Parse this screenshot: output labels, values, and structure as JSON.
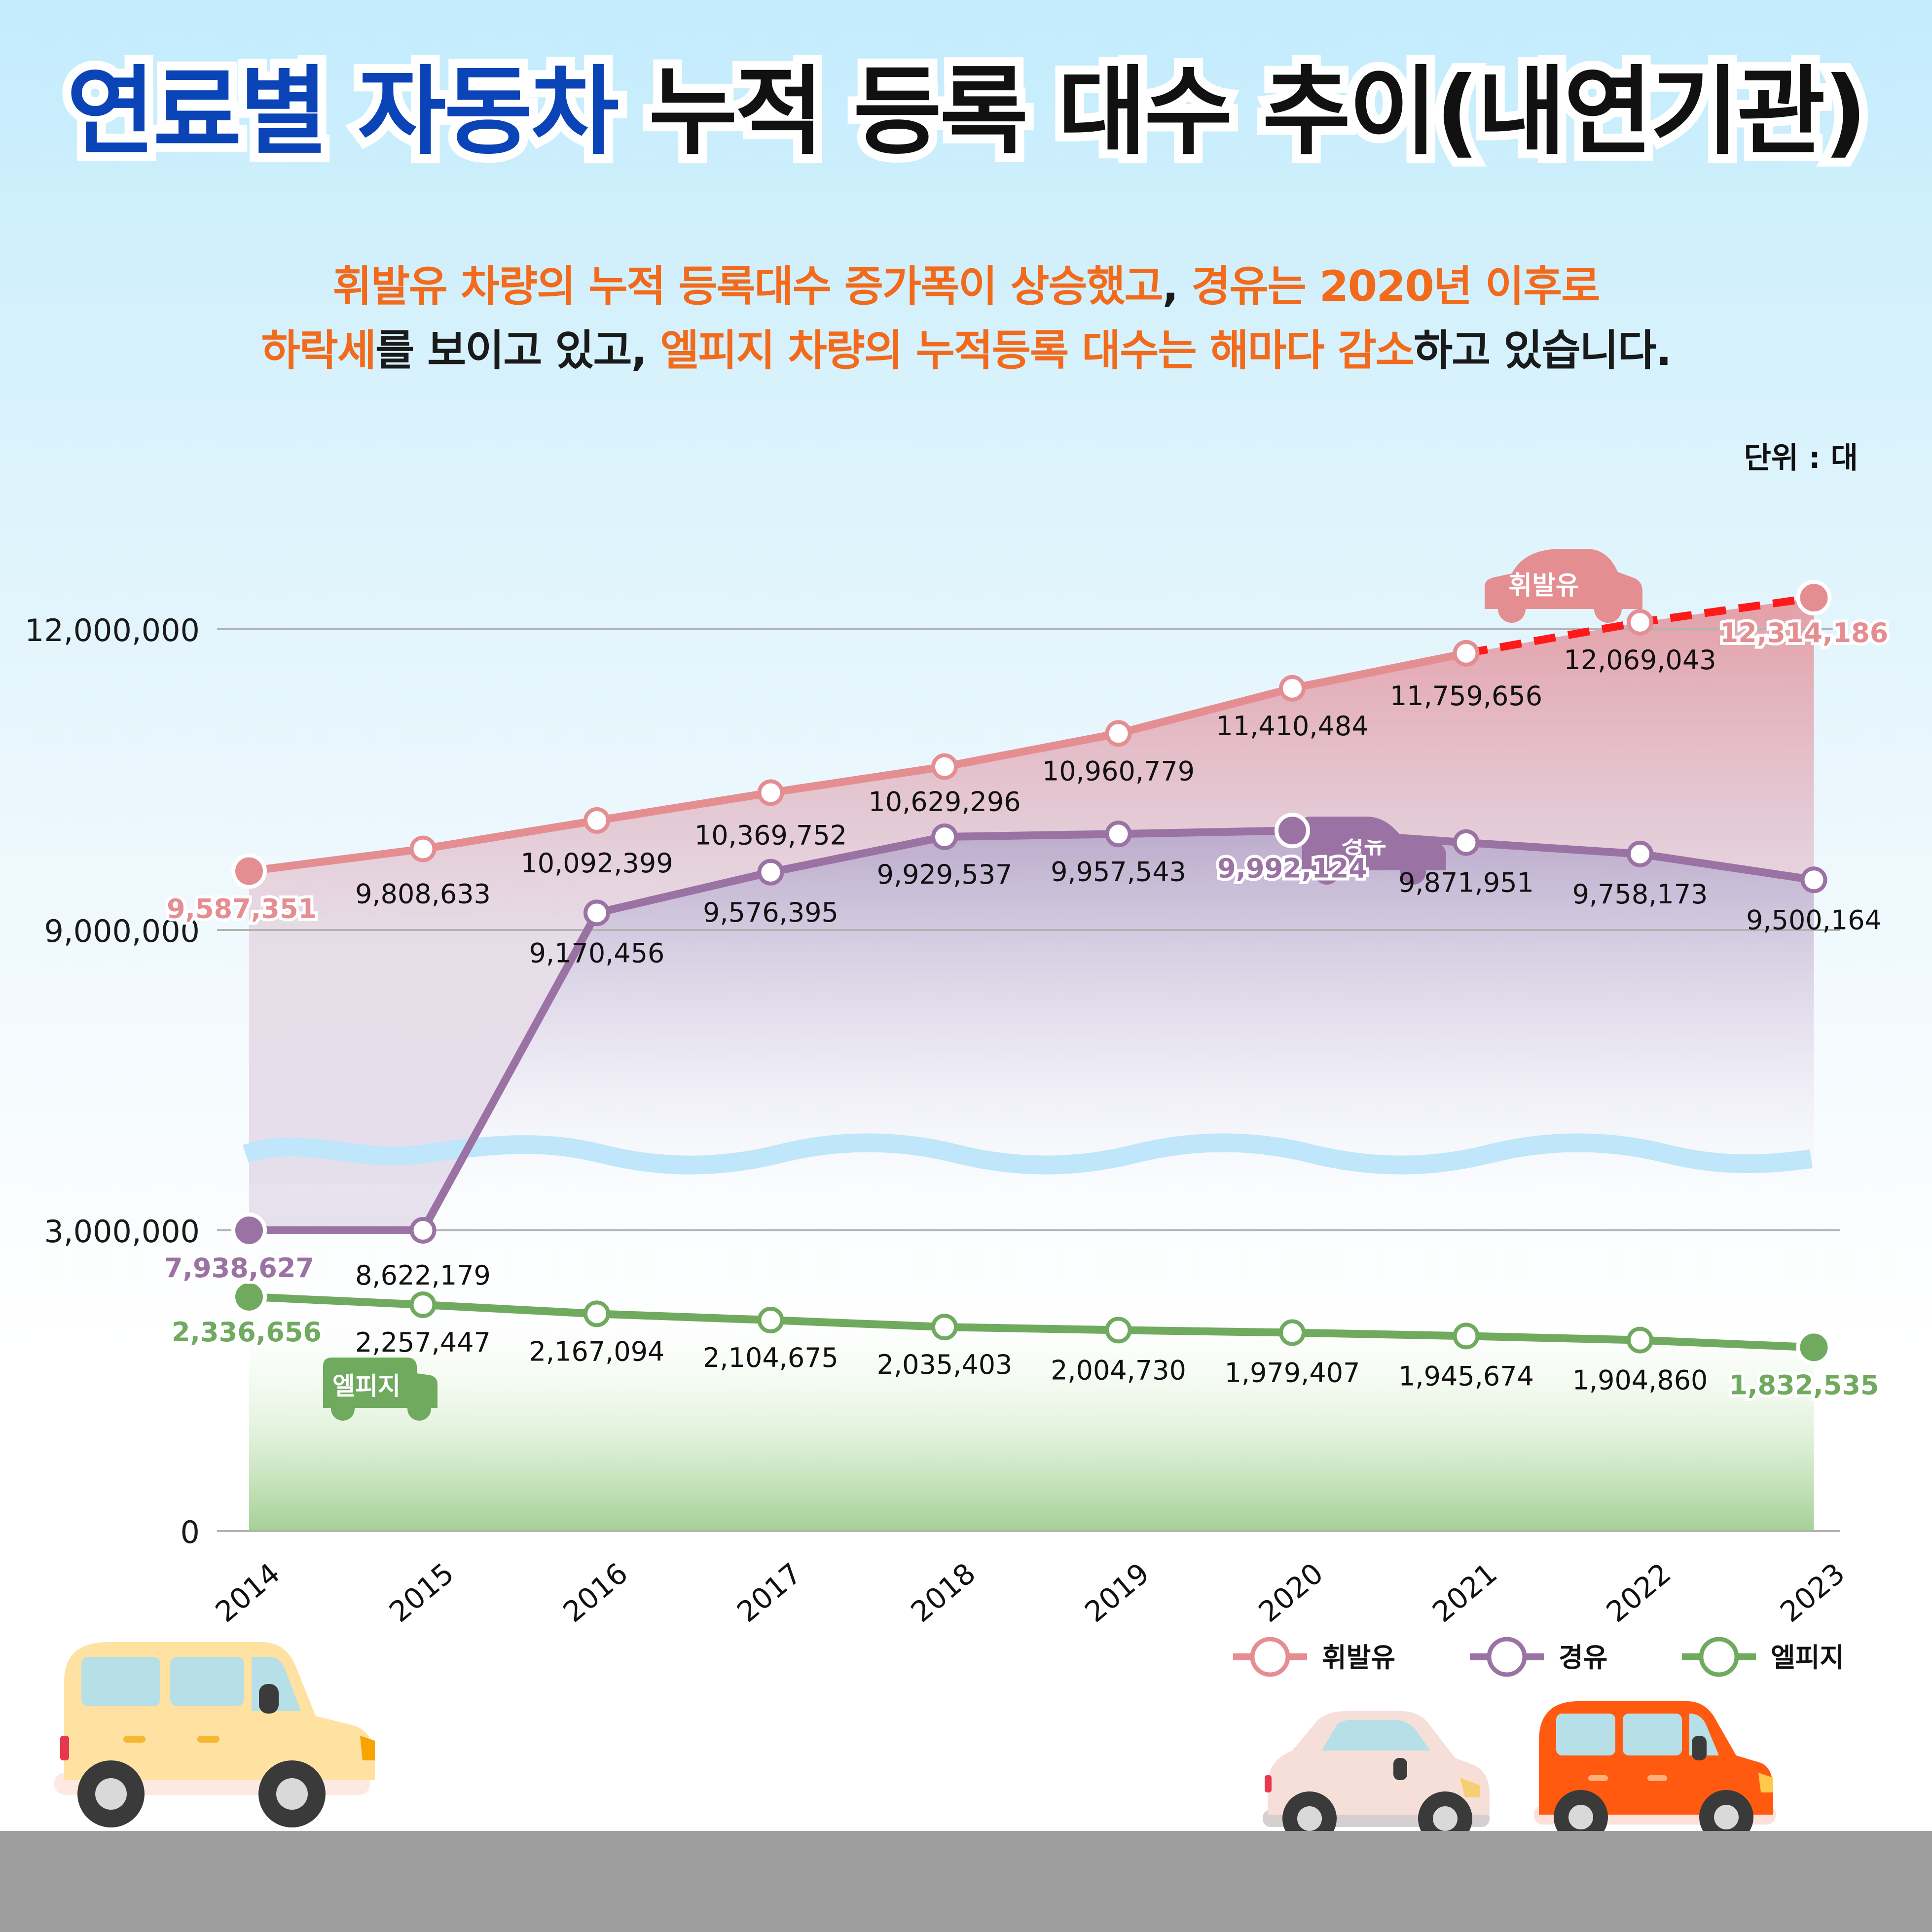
{
  "title": {
    "part1": "연료별 자동차",
    "part2": " 누적 등록 대수 추이(내연기관)"
  },
  "subtitle": {
    "line1_a": "휘발유 차량의 누적 등록대수 증가폭이 상승했고",
    "line1_b": ", ",
    "line1_c": "경유는 2020년 이후로",
    "line2_a": "하락세",
    "line2_b": "를 보이고 있고, ",
    "line2_c": "엘피지 차량의 누적등록 대수는 해마다 감소",
    "line2_d": "하고 있습니다."
  },
  "unit": "단위 : 대",
  "chart_data": {
    "type": "line",
    "categories": [
      "2014",
      "2015",
      "2016",
      "2017",
      "2018",
      "2019",
      "2020",
      "2021",
      "2022",
      "2023"
    ],
    "y_tick_labels": [
      "12,000,000",
      "9,000,000",
      "3,000,000",
      "0"
    ],
    "y_scale": "broken axis between 3,000,000 and 9,000,000",
    "grid": true,
    "legend_position": "bottom-right",
    "series": [
      {
        "name": "휘발유",
        "color": "#e58e92",
        "values": [
          9587351,
          9808633,
          10092399,
          10369752,
          10629296,
          10960779,
          11410484,
          11759656,
          12069043,
          12314186
        ],
        "labels": [
          "9,587,351",
          "9,808,633",
          "10,092,399",
          "10,369,752",
          "10,629,296",
          "10,960,779",
          "11,410,484",
          "11,759,656",
          "12,069,043",
          "12,314,186"
        ],
        "highlight": [
          0,
          9
        ]
      },
      {
        "name": "경유",
        "color": "#9a73a4",
        "values": [
          7938627,
          8622179,
          9170456,
          9576395,
          9929537,
          9957543,
          9992124,
          9871951,
          9758173,
          9500164
        ],
        "labels": [
          "7,938,627",
          "8,622,179",
          "9,170,456",
          "9,576,395",
          "9,929,537",
          "9,957,543",
          "9,992,124",
          "9,871,951",
          "9,758,173",
          "9,500,164"
        ],
        "highlight": [
          0,
          6
        ]
      },
      {
        "name": "엘피지",
        "color": "#6faa5f",
        "values": [
          2336656,
          2257447,
          2167094,
          2104675,
          2035403,
          2004730,
          1979407,
          1945674,
          1904860,
          1832535
        ],
        "labels": [
          "2,336,656",
          "2,257,447",
          "2,167,094",
          "2,104,675",
          "2,035,403",
          "2,004,730",
          "1,979,407",
          "1,945,674",
          "1,904,860",
          "1,832,535"
        ],
        "highlight": [
          0,
          9
        ]
      }
    ]
  },
  "car_tags": {
    "gasoline": "휘발유",
    "diesel": "경유",
    "lpg": "엘피지"
  },
  "colors": {
    "title_blue": "#0a44b7",
    "highlight_orange": "#f26a1b",
    "road": "#9e9e9e"
  }
}
